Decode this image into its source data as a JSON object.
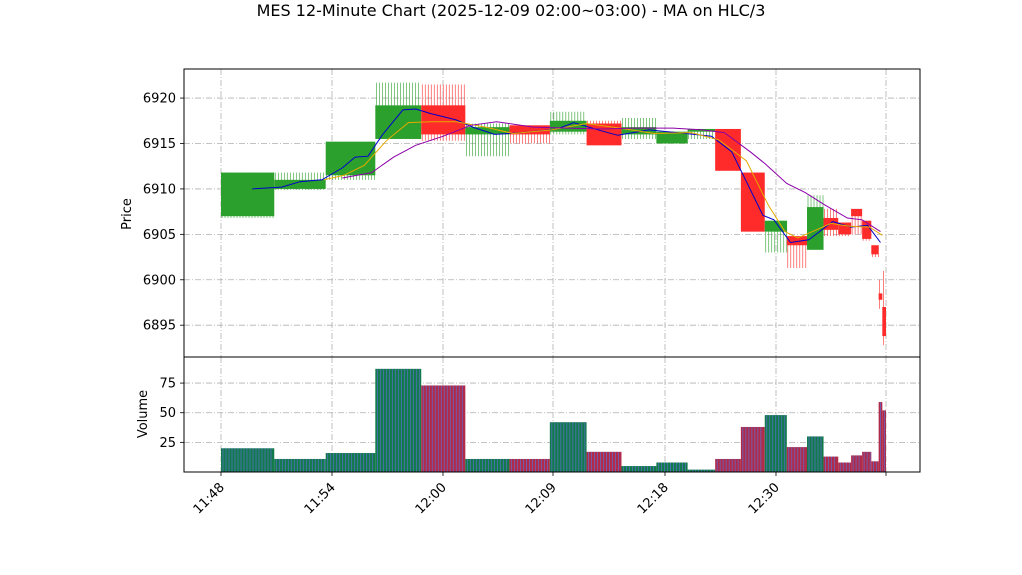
{
  "chart_data": {
    "type": "ohlc",
    "title": "MES 12-Minute Chart (2025-12-09 02:00~03:00) - MA on HLC/3",
    "time_ticks": [
      "11:48",
      "11:54",
      "12:00",
      "12:09",
      "12:18",
      "12:30"
    ],
    "price_panel": {
      "ylabel": "Price",
      "ylim": [
        6891.5,
        6923.2
      ],
      "yticks": [
        6895,
        6900,
        6905,
        6910,
        6915,
        6920
      ],
      "grid": true
    },
    "volume_panel": {
      "ylabel": "Volume",
      "ylim": [
        0,
        97
      ],
      "yticks": [
        25,
        50,
        75
      ],
      "grid": true
    },
    "bars": [
      {
        "t": 0.0,
        "w": 2.9,
        "open": 6907.0,
        "high": 6911.8,
        "low": 6906.8,
        "close": 6911.8,
        "volume": 20
      },
      {
        "t": 2.9,
        "w": 2.8,
        "open": 6910.0,
        "high": 6911.8,
        "low": 6909.9,
        "close": 6911.0,
        "volume": 11
      },
      {
        "t": 5.7,
        "w": 2.7,
        "open": 6911.5,
        "high": 6915.2,
        "low": 6911.0,
        "close": 6915.2,
        "volume": 16
      },
      {
        "t": 8.4,
        "w": 2.5,
        "open": 6915.5,
        "high": 6921.7,
        "low": 6915.5,
        "close": 6919.2,
        "volume": 87
      },
      {
        "t": 10.9,
        "w": 2.4,
        "open": 6919.2,
        "high": 6921.5,
        "low": 6915.3,
        "close": 6916.0,
        "volume": 73
      },
      {
        "t": 13.3,
        "w": 2.4,
        "open": 6916.0,
        "high": 6917.2,
        "low": 6913.6,
        "close": 6916.8,
        "volume": 11
      },
      {
        "t": 15.7,
        "w": 2.2,
        "open": 6917.0,
        "high": 6917.0,
        "low": 6915.0,
        "close": 6916.0,
        "volume": 11
      },
      {
        "t": 17.9,
        "w": 2.0,
        "open": 6916.3,
        "high": 6918.5,
        "low": 6916.0,
        "close": 6917.5,
        "volume": 42
      },
      {
        "t": 19.9,
        "w": 1.9,
        "open": 6917.2,
        "high": 6917.5,
        "low": 6914.8,
        "close": 6914.8,
        "volume": 17
      },
      {
        "t": 21.8,
        "w": 1.9,
        "open": 6916.0,
        "high": 6917.8,
        "low": 6915.5,
        "close": 6916.8,
        "volume": 5
      },
      {
        "t": 23.7,
        "w": 1.7,
        "open": 6915.0,
        "high": 6916.3,
        "low": 6915.0,
        "close": 6916.3,
        "volume": 8
      },
      {
        "t": 25.4,
        "w": 1.5,
        "open": 6916.3,
        "high": 6916.6,
        "low": 6915.5,
        "close": 6916.6,
        "volume": 2
      },
      {
        "t": 26.9,
        "w": 1.4,
        "open": 6916.6,
        "high": 6916.6,
        "low": 6912.0,
        "close": 6912.0,
        "volume": 11
      },
      {
        "t": 28.3,
        "w": 1.3,
        "open": 6911.8,
        "high": 6911.8,
        "low": 6905.3,
        "close": 6905.3,
        "volume": 38
      },
      {
        "t": 29.6,
        "w": 1.2,
        "open": 6905.3,
        "high": 6906.5,
        "low": 6903.0,
        "close": 6906.5,
        "volume": 48
      },
      {
        "t": 30.8,
        "w": 1.1,
        "open": 6904.8,
        "high": 6904.8,
        "low": 6901.3,
        "close": 6903.8,
        "volume": 21
      },
      {
        "t": 31.9,
        "w": 0.9,
        "open": 6903.3,
        "high": 6909.3,
        "low": 6903.3,
        "close": 6908.0,
        "volume": 30
      },
      {
        "t": 32.8,
        "w": 0.8,
        "open": 6906.8,
        "high": 6907.8,
        "low": 6904.8,
        "close": 6905.5,
        "volume": 13
      },
      {
        "t": 33.6,
        "w": 0.7,
        "open": 6906.3,
        "high": 6906.3,
        "low": 6904.8,
        "close": 6905.0,
        "volume": 8
      },
      {
        "t": 34.3,
        "w": 0.6,
        "open": 6907.8,
        "high": 6907.8,
        "low": 6905.0,
        "close": 6907.0,
        "volume": 14
      },
      {
        "t": 34.9,
        "w": 0.5,
        "open": 6906.5,
        "high": 6906.5,
        "low": 6904.3,
        "close": 6904.5,
        "volume": 17
      },
      {
        "t": 35.4,
        "w": 0.4,
        "open": 6903.8,
        "high": 6903.8,
        "low": 6902.5,
        "close": 6902.8,
        "volume": 9
      },
      {
        "t": 35.8,
        "w": 0.2,
        "open": 6898.5,
        "high": 6900.0,
        "low": 6896.8,
        "close": 6897.8,
        "volume": 59
      },
      {
        "t": 36.0,
        "w": 0.2,
        "open": 6897.0,
        "high": 6901.0,
        "low": 6892.8,
        "close": 6893.8,
        "volume": 52
      }
    ],
    "moving_averages": [
      {
        "color": "#0000cc",
        "points": [
          [
            1.7,
            6910.0
          ],
          [
            3.3,
            6910.2
          ],
          [
            4.3,
            6910.8
          ],
          [
            5.5,
            6911.0
          ],
          [
            6.6,
            6912.3
          ],
          [
            7.3,
            6913.5
          ],
          [
            8.0,
            6913.6
          ],
          [
            8.8,
            6916.0
          ],
          [
            9.9,
            6918.7
          ],
          [
            10.6,
            6918.8
          ],
          [
            11.4,
            6918.3
          ],
          [
            12.8,
            6917.6
          ],
          [
            13.7,
            6916.8
          ],
          [
            14.9,
            6916.0
          ],
          [
            16.4,
            6916.2
          ],
          [
            18.3,
            6916.6
          ],
          [
            19.2,
            6917.3
          ],
          [
            20.7,
            6916.4
          ],
          [
            21.6,
            6915.9
          ],
          [
            23.3,
            6916.5
          ],
          [
            25.3,
            6916.1
          ],
          [
            26.7,
            6915.8
          ],
          [
            27.8,
            6914.1
          ],
          [
            28.7,
            6910.4
          ],
          [
            29.5,
            6907.1
          ],
          [
            30.1,
            6906.6
          ],
          [
            31.0,
            6904.1
          ],
          [
            32.0,
            6904.4
          ],
          [
            33.3,
            6906.4
          ],
          [
            34.3,
            6905.8
          ],
          [
            35.2,
            6906.0
          ],
          [
            35.9,
            6904.1
          ]
        ]
      },
      {
        "color": "#e6a800",
        "points": [
          [
            5.6,
            6911.0
          ],
          [
            6.7,
            6911.5
          ],
          [
            7.8,
            6912.6
          ],
          [
            9.0,
            6915.3
          ],
          [
            10.2,
            6917.3
          ],
          [
            11.4,
            6917.4
          ],
          [
            12.8,
            6917.4
          ],
          [
            14.4,
            6916.8
          ],
          [
            15.9,
            6916.1
          ],
          [
            18.0,
            6916.5
          ],
          [
            19.9,
            6917.2
          ],
          [
            21.7,
            6916.7
          ],
          [
            23.6,
            6916.1
          ],
          [
            25.6,
            6916.2
          ],
          [
            27.1,
            6915.4
          ],
          [
            28.6,
            6913.1
          ],
          [
            29.8,
            6908.2
          ],
          [
            30.7,
            6905.3
          ],
          [
            31.4,
            6904.6
          ],
          [
            32.3,
            6905.4
          ],
          [
            33.2,
            6906.2
          ],
          [
            34.2,
            6905.9
          ],
          [
            35.3,
            6905.8
          ],
          [
            36.0,
            6904.9
          ]
        ]
      },
      {
        "color": "#8b00a8",
        "points": [
          [
            6.6,
            6911.2
          ],
          [
            8.2,
            6911.8
          ],
          [
            9.4,
            6913.5
          ],
          [
            10.6,
            6914.8
          ],
          [
            12.1,
            6915.8
          ],
          [
            13.6,
            6917.0
          ],
          [
            15.0,
            6917.4
          ],
          [
            17.0,
            6916.8
          ],
          [
            18.9,
            6916.7
          ],
          [
            20.8,
            6916.6
          ],
          [
            22.4,
            6916.7
          ],
          [
            24.6,
            6916.7
          ],
          [
            26.2,
            6916.5
          ],
          [
            27.4,
            6916.2
          ],
          [
            28.8,
            6914.1
          ],
          [
            29.6,
            6912.8
          ],
          [
            30.8,
            6910.6
          ],
          [
            31.8,
            6909.6
          ],
          [
            32.9,
            6908.2
          ],
          [
            34.1,
            6906.8
          ],
          [
            34.9,
            6906.6
          ],
          [
            35.9,
            6905.3
          ]
        ]
      }
    ]
  }
}
